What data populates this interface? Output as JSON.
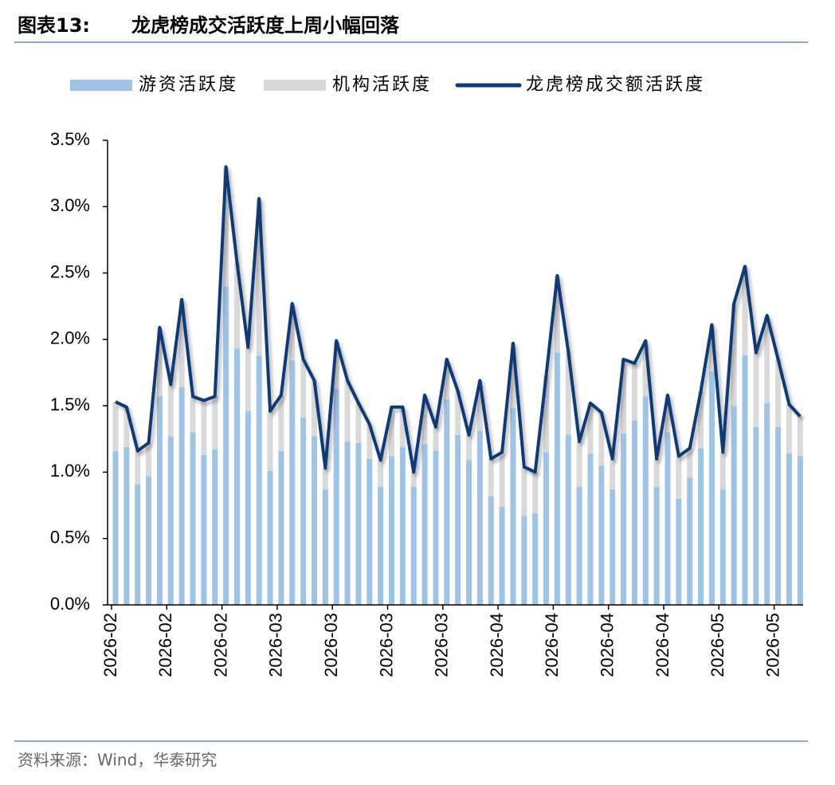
{
  "chart_data": {
    "type": "bar",
    "stacked": true,
    "label": "图表13:",
    "title": "龙虎榜成交活跃度上周小幅回落",
    "source": "资料来源：Wind，华泰研究",
    "categories": [
      "2026-02",
      null,
      null,
      null,
      null,
      "2026-02",
      null,
      null,
      null,
      null,
      "2026-02",
      null,
      null,
      null,
      null,
      "2026-03",
      null,
      null,
      null,
      null,
      "2026-03",
      null,
      null,
      null,
      null,
      "2026-03",
      null,
      null,
      null,
      null,
      "2026-03",
      null,
      null,
      null,
      null,
      "2026-04",
      null,
      null,
      null,
      null,
      "2026-04",
      null,
      null,
      null,
      null,
      "2026-04",
      null,
      null,
      null,
      null,
      "2026-04",
      null,
      null,
      null,
      null,
      "2026-05",
      null,
      null,
      null,
      null,
      "2026-05",
      null,
      null
    ],
    "series": [
      {
        "name": "游资活跃度",
        "type": "bar",
        "color": "#9dc3e6",
        "values": [
          1.16,
          1.19,
          0.91,
          0.97,
          1.57,
          1.27,
          1.64,
          1.3,
          1.13,
          1.17,
          2.4,
          1.93,
          1.46,
          1.88,
          1.01,
          1.16,
          1.84,
          1.41,
          1.27,
          0.87,
          1.63,
          1.23,
          1.22,
          1.1,
          0.89,
          1.12,
          1.19,
          0.89,
          1.21,
          1.16,
          1.55,
          1.28,
          1.09,
          1.31,
          0.82,
          0.74,
          1.48,
          0.67,
          0.69,
          1.15,
          1.9,
          1.28,
          0.89,
          1.14,
          1.05,
          0.87,
          1.29,
          1.39,
          1.57,
          0.89,
          1.3,
          0.8,
          0.96,
          1.18,
          1.76,
          0.87,
          1.5,
          1.88,
          1.34,
          1.52,
          1.34,
          1.14,
          1.12
        ]
      },
      {
        "name": "机构活跃度",
        "type": "bar",
        "color": "#d9d9d9",
        "values": [
          0.37,
          0.3,
          0.25,
          0.25,
          0.52,
          0.39,
          0.66,
          0.27,
          0.41,
          0.4,
          0.9,
          0.65,
          0.48,
          1.18,
          0.45,
          0.42,
          0.43,
          0.44,
          0.42,
          0.16,
          0.36,
          0.46,
          0.3,
          0.26,
          0.2,
          0.37,
          0.3,
          0.11,
          0.37,
          0.18,
          0.3,
          0.33,
          0.19,
          0.38,
          0.28,
          0.41,
          0.49,
          0.37,
          0.31,
          0.58,
          0.58,
          0.63,
          0.34,
          0.38,
          0.4,
          0.23,
          0.56,
          0.43,
          0.42,
          0.21,
          0.28,
          0.32,
          0.22,
          0.43,
          0.35,
          0.28,
          0.77,
          0.67,
          0.56,
          0.66,
          0.51,
          0.37,
          0.3
        ]
      },
      {
        "name": "龙虎榜成交额活跃度",
        "type": "line",
        "color": "#0b3a78",
        "values": [
          1.53,
          1.49,
          1.16,
          1.22,
          2.09,
          1.66,
          2.3,
          1.57,
          1.54,
          1.57,
          3.3,
          2.58,
          1.94,
          3.06,
          1.46,
          1.58,
          2.27,
          1.85,
          1.69,
          1.03,
          1.99,
          1.69,
          1.52,
          1.36,
          1.09,
          1.49,
          1.49,
          1.0,
          1.58,
          1.34,
          1.85,
          1.61,
          1.28,
          1.69,
          1.1,
          1.15,
          1.97,
          1.04,
          1.0,
          1.73,
          2.48,
          1.91,
          1.23,
          1.52,
          1.45,
          1.1,
          1.85,
          1.82,
          1.99,
          1.1,
          1.58,
          1.12,
          1.18,
          1.61,
          2.11,
          1.15,
          2.27,
          2.55,
          1.9,
          2.18,
          1.85,
          1.51,
          1.42
        ]
      }
    ],
    "ylim": [
      0,
      3.5
    ],
    "yticks": [
      {
        "value": 0,
        "label": "0.0%"
      },
      {
        "value": 0.5,
        "label": "0.5%"
      },
      {
        "value": 1,
        "label": "1.0%"
      },
      {
        "value": 1.5,
        "label": "1.5%"
      },
      {
        "value": 2,
        "label": "2.0%"
      },
      {
        "value": 2.5,
        "label": "2.5%"
      },
      {
        "value": 3,
        "label": "3.0%"
      },
      {
        "value": 3.5,
        "label": "3.5%"
      }
    ],
    "grid": false,
    "legend": "top"
  }
}
